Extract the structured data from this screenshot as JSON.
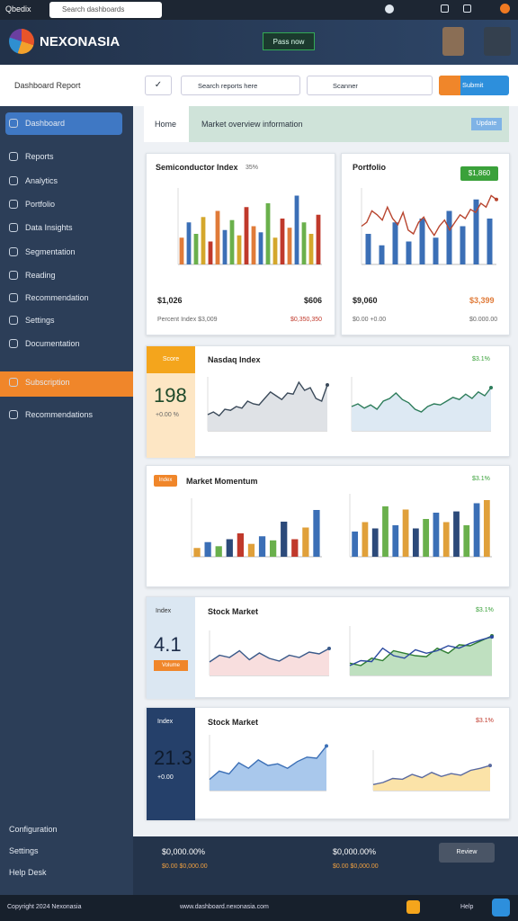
{
  "topbar": {
    "brand": "Qbedix",
    "search": "Search dashboards"
  },
  "header": {
    "logo": "NEXONASIA",
    "button": "Pass now"
  },
  "sidebar": {
    "account": "Dashboard Report",
    "items": [
      "Dashboard",
      "Reports",
      "Analytics",
      "Portfolio",
      "Data Insights",
      "Segmentation",
      "Reading",
      "Recommendation",
      "Settings",
      "Documentation",
      "Subscription",
      "Recommendations"
    ],
    "bottom": [
      "Configuration",
      "Settings",
      "Help Desk"
    ]
  },
  "toolbar": {
    "search": "Search reports here",
    "filter": "Scanner",
    "action": "Submit"
  },
  "tabs": {
    "home": "Home",
    "title": "Market overview information",
    "button": "Update"
  },
  "cards": [
    {
      "title": "Semiconductor Index",
      "badge": "35%",
      "stat_left": "$1,026",
      "stat_right": "$606",
      "sub_left": "Percent Index $3,009",
      "sub_right": "$0,350,350"
    },
    {
      "title": "Portfolio",
      "badge": "$1,860",
      "stat_left": "$9,060",
      "stat_right": "$3,399",
      "sub_left": "$0.00 +0.00",
      "sub_right": "$0.000.00"
    },
    {
      "title": "Nasdaq Index",
      "badge": "$3.1%",
      "panel_label": "Score",
      "big": "198",
      "panel_sub": "+0.00 %"
    },
    {
      "title": "Market Momentum",
      "pill": "Index",
      "badge": "$3.1%"
    },
    {
      "title": "Stock Market",
      "badge": "$3.1%",
      "panel_label": "Index",
      "big": "4.1",
      "pill": "Volume"
    },
    {
      "title": "Stock Market",
      "badge": "$3.1%",
      "panel_label": "Index",
      "big": "21.3",
      "panel_sub": "+0.00"
    }
  ],
  "footer": {
    "left": "$0,000.00%",
    "left_sub": "$0.00 $0,000.00",
    "right": "$0,000.00%",
    "right_sub": "$0.00 $0,000.00",
    "button": "Review"
  },
  "bottombar": {
    "left": "Copyright 2024 Nexonasia",
    "center": "www.dashboard.nexonasia.com",
    "right": "Help"
  },
  "charts": [
    {
      "type": "bar",
      "ylim": [
        0,
        100
      ],
      "colors": [
        "#e07b39",
        "#3b6fb6",
        "#6ab04c",
        "#d4a72c",
        "#c0392b"
      ],
      "values": [
        35,
        55,
        40,
        62,
        30,
        70,
        45,
        58,
        38,
        75,
        50,
        42,
        80,
        35,
        60,
        48,
        90,
        55,
        40,
        65
      ]
    },
    {
      "type": "bar-line",
      "ylim": [
        0,
        100
      ],
      "bars": {
        "color": "#3b6fb6",
        "values": [
          40,
          25,
          55,
          30,
          60,
          35,
          70,
          50,
          85,
          60
        ]
      },
      "series": [
        {
          "color": "#b8452f",
          "values": [
            50,
            55,
            70,
            65,
            58,
            75,
            60,
            52,
            68,
            45,
            40,
            55,
            62,
            48,
            38,
            50,
            58,
            45,
            55,
            65,
            60,
            72,
            68,
            80,
            75,
            90,
            85
          ]
        }
      ]
    },
    {
      "type": "line",
      "ylim": [
        0,
        100
      ],
      "series": [
        {
          "color": "#3b4a5a",
          "fill": "#dfe2e6",
          "values": [
            30,
            35,
            28,
            40,
            38,
            45,
            42,
            55,
            50,
            48,
            60,
            72,
            65,
            58,
            70,
            68,
            90,
            75,
            80,
            60,
            55,
            85
          ]
        }
      ]
    },
    {
      "type": "line",
      "ylim": [
        0,
        100
      ],
      "series": [
        {
          "color": "#2e7d5b",
          "fill": "#dde9f3",
          "values": [
            45,
            50,
            42,
            48,
            40,
            55,
            60,
            70,
            58,
            52,
            40,
            35,
            45,
            50,
            48,
            55,
            62,
            58,
            68,
            60,
            72,
            65,
            80
          ]
        }
      ]
    },
    {
      "type": "bar",
      "ylim": [
        0,
        100
      ],
      "colors": [
        "#e0a03a",
        "#3b6fb6",
        "#6ab04c",
        "#2c4a7a",
        "#c0392b"
      ],
      "values": [
        15,
        25,
        18,
        30,
        40,
        22,
        35,
        28,
        60,
        30,
        50,
        80
      ]
    },
    {
      "type": "bar",
      "ylim": [
        0,
        100
      ],
      "colors": [
        "#3b6fb6",
        "#e0a03a",
        "#2c4a7a",
        "#6ab04c"
      ],
      "values": [
        40,
        55,
        45,
        80,
        50,
        75,
        45,
        60,
        70,
        55,
        72,
        50,
        85,
        90
      ]
    },
    {
      "type": "line",
      "ylim": [
        0,
        100
      ],
      "series": [
        {
          "color": "#3a5a8a",
          "fill": "#f8dede",
          "values": [
            30,
            45,
            40,
            55,
            35,
            50,
            38,
            32,
            45,
            40,
            52,
            48,
            60
          ]
        }
      ]
    },
    {
      "type": "line",
      "ylim": [
        0,
        100
      ],
      "series": [
        {
          "color": "#2e7d32",
          "fill": "#bfe0c0",
          "values": [
            25,
            20,
            35,
            30,
            50,
            45,
            40,
            38,
            55,
            45,
            62,
            60,
            70,
            80
          ]
        },
        {
          "color": "#2c4aa0",
          "values": [
            20,
            30,
            28,
            55,
            40,
            35,
            52,
            45,
            50,
            60,
            55,
            65,
            72,
            78
          ]
        }
      ]
    },
    {
      "type": "line",
      "ylim": [
        0,
        100
      ],
      "series": [
        {
          "color": "#3b6fb6",
          "fill": "#a9c8ec",
          "values": [
            20,
            35,
            30,
            50,
            40,
            55,
            45,
            48,
            40,
            52,
            60,
            58,
            80
          ]
        }
      ]
    },
    {
      "type": "line",
      "ylim": [
        0,
        100
      ],
      "series": [
        {
          "color": "#5a6aa0",
          "fill": "#fbe3a8",
          "values": [
            15,
            20,
            30,
            28,
            40,
            32,
            45,
            35,
            42,
            38,
            50,
            55,
            62
          ]
        }
      ]
    }
  ]
}
